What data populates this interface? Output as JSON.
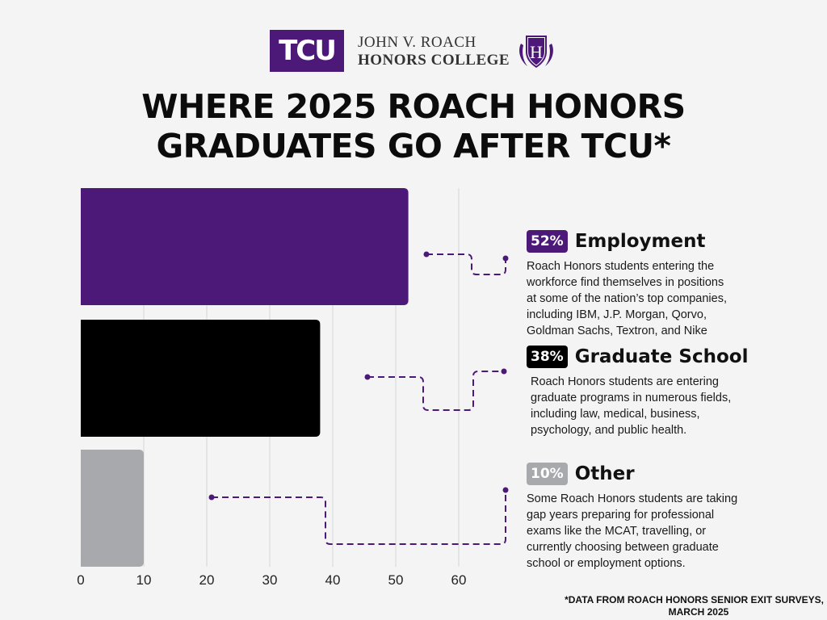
{
  "header": {
    "logo_text": "TCU",
    "college_line1": "JOHN V. ROACH",
    "college_line2": "HONORS COLLEGE",
    "crest_letter": "H",
    "crest_icon": "shield-crest-icon"
  },
  "title_lines": [
    "WHERE 2025 ROACH HONORS",
    "GRADUATES GO AFTER TCU*"
  ],
  "categories": [
    {
      "pct": "52%",
      "label": "Employment",
      "color": "#4d1979",
      "desc_lines": [
        "Roach Honors students entering the",
        "workforce find themselves in positions",
        "at some of the nation’s top companies,",
        "including IBM, J.P. Morgan, Qorvo,",
        "Goldman Sachs, Textron, and Nike"
      ]
    },
    {
      "pct": "38%",
      "label": "Graduate School",
      "color": "#000000",
      "desc_lines": [
        "Roach Honors students are entering",
        "graduate programs in numerous fields,",
        "including law, medical, business,",
        "psychology, and public health."
      ]
    },
    {
      "pct": "10%",
      "label": "Other",
      "color": "#a7a9ac",
      "desc_lines": [
        "Some Roach Honors students are taking",
        "gap years preparing for professional",
        "exams like the MCAT, travelling, or",
        "currently choosing between graduate",
        "school or employment options."
      ]
    }
  ],
  "chart_data": {
    "type": "bar",
    "orientation": "horizontal",
    "categories": [
      "Employment",
      "Graduate School",
      "Other"
    ],
    "values": [
      52,
      38,
      10
    ],
    "colors": [
      "#4d1979",
      "#000000",
      "#a7a9ac"
    ],
    "xlim": [
      0,
      70
    ],
    "x_ticks": [
      "0",
      "10",
      "20",
      "30",
      "40",
      "50",
      "60"
    ],
    "grid": true,
    "xlabel": "",
    "ylabel": ""
  },
  "footnote_lines": [
    "*DATA FROM ROACH HONORS SENIOR EXIT SURVEYS,",
    "MARCH 2025"
  ]
}
